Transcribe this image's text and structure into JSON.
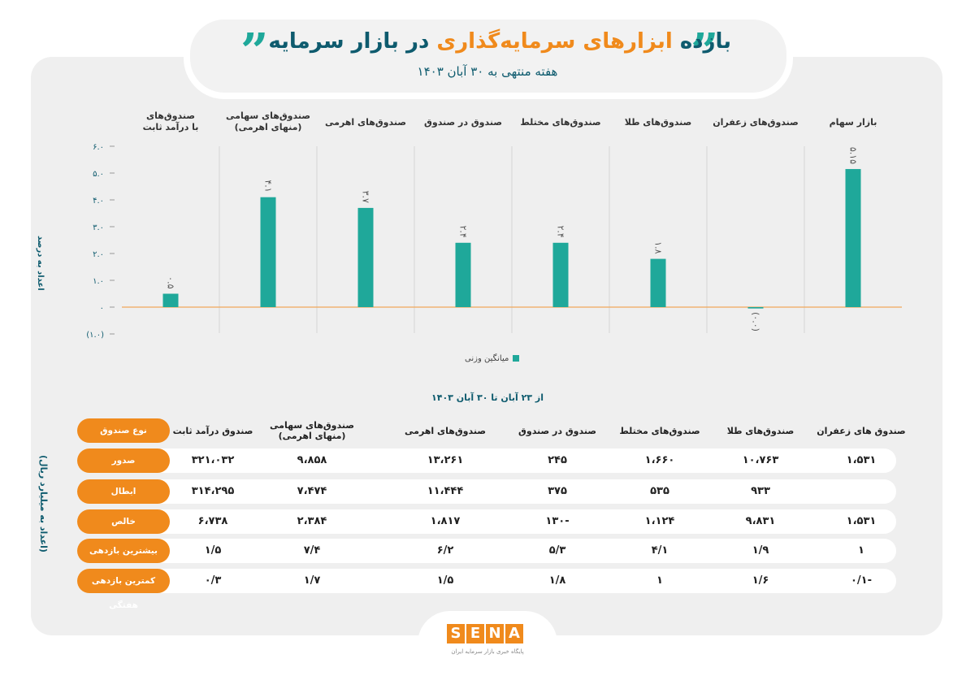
{
  "header": {
    "title_part1": "بازده",
    "title_part2": "ابزارهای سرمایه‌گذاری",
    "title_part3": "در بازار سرمایه",
    "subtitle": "هفته منتهی به ۳۰ آبان ۱۴۰۳",
    "quote_glyph": "”"
  },
  "chart_data": {
    "type": "bar",
    "categories": [
      "بازار سهام",
      "صندوق‌های زعفران",
      "صندوق‌های طلا",
      "صندوق‌های مختلط",
      "صندوق در صندوق",
      "صندوق‌های اهرمی",
      "صندوق‌های سهامی (منهای اهرمی)",
      "صندوق‌های با درآمد ثابت"
    ],
    "category_lines": [
      [
        "بازار سهام"
      ],
      [
        "صندوق‌های زعفران"
      ],
      [
        "صندوق‌های طلا"
      ],
      [
        "صندوق‌های مختلط"
      ],
      [
        "صندوق در صندوق"
      ],
      [
        "صندوق‌های اهرمی"
      ],
      [
        "صندوق‌های سهامی",
        "(منهای اهرمی)"
      ],
      [
        "صندوق‌های",
        "با درآمد ثابت"
      ]
    ],
    "series": [
      {
        "name": "میانگین وزنی",
        "values": [
          5.15,
          -0.05,
          1.8,
          2.4,
          2.4,
          3.7,
          4.1,
          0.5
        ]
      }
    ],
    "value_labels": [
      "۵.۱۵",
      "(۰.۰)",
      "۱.۸",
      "۲.۴",
      "۲.۴",
      "۳.۷",
      "۴.۱",
      "۰.۵"
    ],
    "yticks": [
      6,
      5,
      4,
      3,
      2,
      1,
      0,
      -1
    ],
    "ytick_labels": [
      "۶.۰",
      "۵.۰",
      "۴.۰",
      "۳.۰",
      "۲.۰",
      "۱.۰",
      "۰",
      "(۱.۰)"
    ],
    "ylim": [
      -1,
      6
    ],
    "ylabel": "اعداد به درصد",
    "legend": "میانگین وزنی",
    "legend_position": "bottom",
    "bar_color": "#1fa89a",
    "zero_line_color": "#f0a85a"
  },
  "table": {
    "range_label": "از ۲۳ آبان تا ۳۰ آبان ۱۴۰۳",
    "unit_label": "(اعداد به میلیارد ریال)",
    "header_row_label": "نوع صندوق",
    "columns": [
      "صندوق درآمد ثابت",
      "صندوق‌های سهامی (منهای اهرمی)",
      "صندوق‌های اهرمی",
      "صندوق در صندوق",
      "صندوق‌های مختلط",
      "صندوق‌های طلا",
      "صندوق های زعفران"
    ],
    "rows": [
      {
        "label": "صدور",
        "values": [
          "۳۲۱،۰۳۲",
          "۹،۸۵۸",
          "۱۳،۲۶۱",
          "۲۴۵",
          "۱،۶۶۰",
          "۱۰،۷۶۳",
          "۱،۵۳۱"
        ]
      },
      {
        "label": "ابطال",
        "values": [
          "۳۱۴،۲۹۵",
          "۷،۴۷۴",
          "۱۱،۴۴۴",
          "۳۷۵",
          "۵۳۵",
          "۹۳۳",
          ""
        ]
      },
      {
        "label": "خالص",
        "values": [
          "۶،۷۳۸",
          "۲،۳۸۴",
          "۱،۸۱۷",
          "-۱۳۰",
          "۱،۱۲۴",
          "۹،۸۳۱",
          "۱،۵۳۱"
        ]
      },
      {
        "label": "بیشترین بازدهی هفتگی",
        "values": [
          "۱/۵",
          "۷/۴",
          "۶/۲",
          "۵/۳",
          "۴/۱",
          "۱/۹",
          "۱"
        ]
      },
      {
        "label": "کمترین بازدهی هفتگی",
        "values": [
          "۰/۳",
          "۱/۷",
          "۱/۵",
          "۱/۸",
          "۱",
          "۱/۶",
          "-۰/۱"
        ]
      }
    ],
    "accent_color": "#f08a1c"
  },
  "footer": {
    "logo_letters": [
      "S",
      "E",
      "N",
      "A"
    ],
    "logo_sub": "پایگاه خبری بازار سرمایه ایران"
  }
}
